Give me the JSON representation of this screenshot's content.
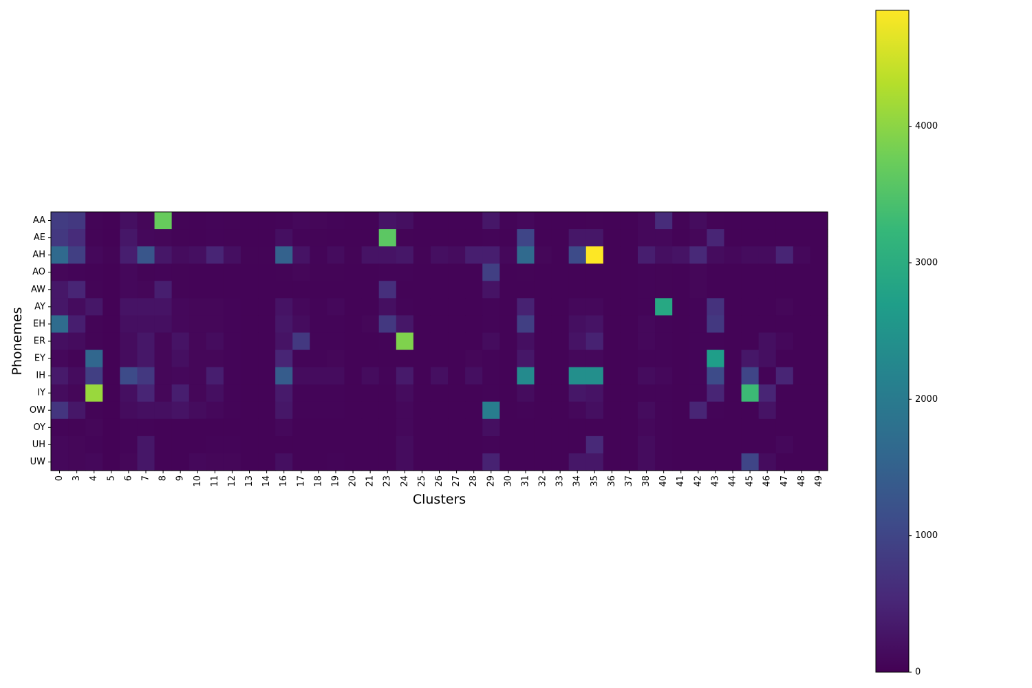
{
  "chart_data": {
    "type": "heatmap",
    "title": "",
    "xlabel": "Clusters",
    "ylabel": "Phonemes",
    "colormap": "viridis",
    "colorbar": {
      "min": 0,
      "max": 4850,
      "ticks": [
        0,
        1000,
        2000,
        3000,
        4000
      ]
    },
    "x_categories": [
      "0",
      "3",
      "4",
      "5",
      "6",
      "7",
      "8",
      "9",
      "10",
      "11",
      "12",
      "13",
      "14",
      "16",
      "17",
      "18",
      "19",
      "20",
      "21",
      "23",
      "24",
      "25",
      "26",
      "27",
      "28",
      "29",
      "30",
      "31",
      "32",
      "33",
      "34",
      "35",
      "36",
      "37",
      "38",
      "40",
      "41",
      "42",
      "43",
      "44",
      "45",
      "46",
      "47",
      "48",
      "49"
    ],
    "y_categories": [
      "AA",
      "AE",
      "AH",
      "AO",
      "AW",
      "AY",
      "EH",
      "ER",
      "EY",
      "IH",
      "IY",
      "OW",
      "OY",
      "UH",
      "UW"
    ],
    "values": [
      [
        850,
        800,
        50,
        30,
        200,
        80,
        3700,
        50,
        40,
        60,
        50,
        40,
        40,
        60,
        100,
        80,
        60,
        40,
        40,
        250,
        200,
        40,
        40,
        40,
        40,
        300,
        60,
        100,
        40,
        40,
        40,
        50,
        40,
        40,
        100,
        600,
        50,
        150,
        50,
        40,
        40,
        40,
        40,
        40,
        40
      ],
      [
        800,
        600,
        50,
        30,
        300,
        100,
        80,
        50,
        40,
        60,
        50,
        40,
        40,
        200,
        60,
        50,
        40,
        40,
        40,
        3600,
        50,
        40,
        40,
        40,
        40,
        60,
        40,
        1000,
        40,
        40,
        300,
        300,
        40,
        40,
        100,
        100,
        40,
        80,
        500,
        40,
        40,
        40,
        40,
        40,
        40
      ],
      [
        1650,
        900,
        100,
        50,
        400,
        1300,
        300,
        150,
        200,
        500,
        200,
        50,
        50,
        1500,
        250,
        60,
        150,
        50,
        250,
        250,
        300,
        50,
        200,
        150,
        400,
        400,
        100,
        1650,
        80,
        40,
        1100,
        4850,
        40,
        40,
        400,
        200,
        250,
        550,
        150,
        100,
        150,
        150,
        500,
        100,
        40
      ],
      [
        80,
        60,
        40,
        30,
        100,
        50,
        60,
        50,
        40,
        40,
        40,
        40,
        40,
        50,
        80,
        50,
        50,
        40,
        40,
        60,
        60,
        40,
        40,
        40,
        40,
        900,
        40,
        50,
        40,
        40,
        40,
        40,
        40,
        40,
        60,
        50,
        40,
        80,
        40,
        40,
        40,
        40,
        40,
        40,
        40
      ],
      [
        300,
        500,
        50,
        30,
        100,
        80,
        400,
        50,
        40,
        40,
        40,
        40,
        40,
        40,
        40,
        40,
        40,
        40,
        40,
        650,
        40,
        40,
        40,
        40,
        40,
        250,
        40,
        40,
        40,
        40,
        40,
        40,
        40,
        40,
        60,
        50,
        40,
        80,
        40,
        40,
        40,
        40,
        40,
        40,
        40
      ],
      [
        300,
        150,
        300,
        30,
        250,
        250,
        250,
        100,
        80,
        80,
        60,
        40,
        40,
        250,
        100,
        60,
        100,
        40,
        40,
        200,
        60,
        40,
        40,
        40,
        40,
        60,
        40,
        450,
        40,
        40,
        100,
        100,
        40,
        40,
        60,
        2900,
        40,
        60,
        700,
        40,
        40,
        40,
        80,
        40,
        40
      ],
      [
        1700,
        400,
        50,
        30,
        200,
        200,
        200,
        100,
        80,
        80,
        60,
        40,
        40,
        300,
        150,
        60,
        60,
        40,
        80,
        800,
        300,
        40,
        40,
        40,
        40,
        60,
        40,
        900,
        40,
        40,
        200,
        250,
        40,
        40,
        100,
        60,
        40,
        60,
        800,
        40,
        40,
        40,
        40,
        40,
        40
      ],
      [
        200,
        150,
        50,
        30,
        150,
        300,
        80,
        250,
        80,
        150,
        60,
        40,
        40,
        250,
        800,
        60,
        60,
        40,
        40,
        60,
        3900,
        40,
        40,
        40,
        40,
        150,
        40,
        200,
        40,
        40,
        250,
        450,
        40,
        40,
        100,
        60,
        40,
        60,
        60,
        40,
        40,
        200,
        100,
        40,
        40
      ],
      [
        100,
        50,
        1600,
        30,
        150,
        300,
        80,
        200,
        80,
        80,
        60,
        40,
        40,
        500,
        60,
        60,
        80,
        40,
        40,
        40,
        40,
        40,
        40,
        40,
        80,
        60,
        40,
        300,
        40,
        40,
        100,
        100,
        40,
        40,
        60,
        60,
        40,
        60,
        2700,
        40,
        300,
        200,
        40,
        40,
        40
      ],
      [
        350,
        150,
        900,
        30,
        1100,
        800,
        80,
        100,
        80,
        400,
        60,
        40,
        40,
        1400,
        150,
        150,
        150,
        40,
        150,
        60,
        350,
        40,
        200,
        40,
        200,
        60,
        40,
        2300,
        40,
        40,
        2400,
        2400,
        40,
        40,
        150,
        100,
        40,
        60,
        1100,
        40,
        1000,
        40,
        500,
        40,
        40
      ],
      [
        150,
        80,
        4100,
        30,
        200,
        500,
        80,
        400,
        80,
        200,
        60,
        40,
        40,
        350,
        60,
        60,
        60,
        40,
        40,
        40,
        150,
        40,
        40,
        40,
        40,
        60,
        40,
        150,
        40,
        40,
        300,
        250,
        40,
        40,
        60,
        60,
        40,
        60,
        500,
        40,
        3300,
        500,
        40,
        40,
        40
      ],
      [
        750,
        300,
        50,
        30,
        150,
        200,
        200,
        250,
        150,
        100,
        60,
        40,
        40,
        300,
        60,
        60,
        60,
        40,
        40,
        40,
        100,
        40,
        40,
        40,
        40,
        2050,
        40,
        60,
        40,
        40,
        100,
        200,
        40,
        40,
        150,
        60,
        40,
        500,
        60,
        40,
        40,
        250,
        40,
        40,
        40
      ],
      [
        60,
        50,
        80,
        30,
        60,
        60,
        40,
        40,
        40,
        40,
        40,
        40,
        40,
        100,
        40,
        40,
        40,
        40,
        40,
        40,
        100,
        40,
        40,
        40,
        40,
        200,
        40,
        40,
        40,
        40,
        40,
        40,
        40,
        40,
        100,
        60,
        40,
        40,
        40,
        40,
        40,
        40,
        40,
        40,
        40
      ],
      [
        100,
        80,
        60,
        30,
        60,
        300,
        40,
        40,
        40,
        60,
        60,
        40,
        40,
        40,
        40,
        40,
        40,
        40,
        40,
        40,
        150,
        40,
        40,
        40,
        40,
        60,
        40,
        40,
        40,
        40,
        40,
        550,
        40,
        40,
        150,
        60,
        40,
        40,
        40,
        40,
        40,
        40,
        100,
        40,
        40
      ],
      [
        100,
        80,
        100,
        30,
        80,
        300,
        40,
        40,
        100,
        80,
        80,
        40,
        40,
        200,
        40,
        40,
        60,
        40,
        40,
        40,
        150,
        40,
        40,
        40,
        40,
        450,
        40,
        40,
        40,
        40,
        300,
        300,
        40,
        40,
        150,
        60,
        40,
        40,
        40,
        40,
        1000,
        150,
        40,
        40,
        40
      ]
    ]
  }
}
